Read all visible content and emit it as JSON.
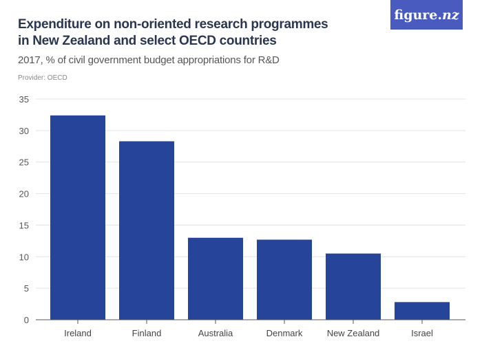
{
  "header": {
    "title": "Expenditure on non-oriented research programmes in New Zealand and select OECD countries",
    "subtitle": "2017, % of civil government budget appropriations for R&D",
    "provider": "Provider: OECD",
    "logo": "figure.nz"
  },
  "chart_data": {
    "type": "bar",
    "title": "Expenditure on non-oriented research programmes in New Zealand and select OECD countries",
    "subtitle": "2017, % of civil government budget appropriations for R&D",
    "categories": [
      "Ireland",
      "Finland",
      "Australia",
      "Denmark",
      "New Zealand",
      "Israel"
    ],
    "values": [
      32.4,
      28.3,
      13.0,
      12.7,
      10.5,
      2.8
    ],
    "ylim": [
      0,
      35
    ],
    "yticks": [
      "0",
      "5",
      "10",
      "15",
      "20",
      "25",
      "30",
      "35"
    ],
    "grid": true,
    "bar_color": "#27449b"
  }
}
